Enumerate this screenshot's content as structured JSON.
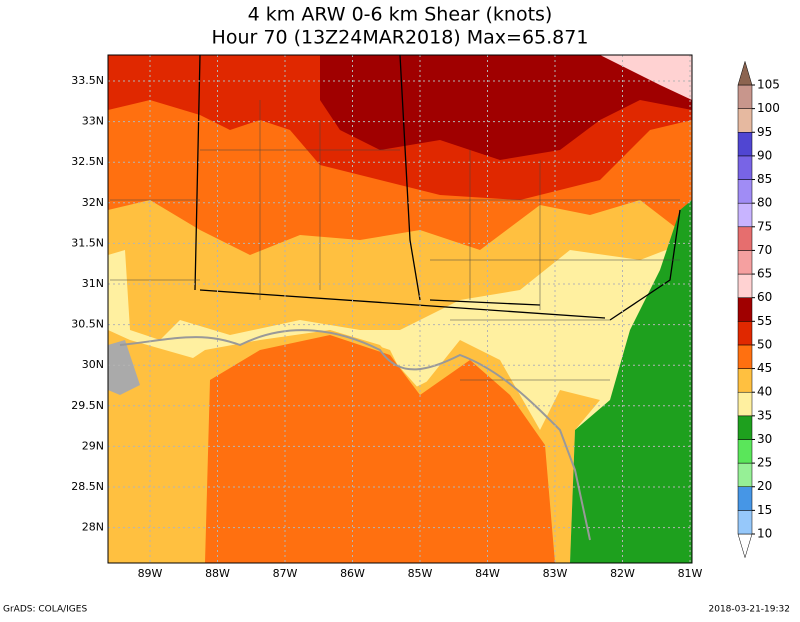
{
  "title": [
    "4 km ARW 0-6 km Shear (knots)",
    "Hour 70 (13Z24MAR2018) Max=65.871"
  ],
  "map": {
    "lat_labels": [
      "33.5N",
      "33N",
      "32.5N",
      "32N",
      "31.5N",
      "31N",
      "30.5N",
      "30N",
      "29.5N",
      "29N",
      "28.5N",
      "28N"
    ],
    "lon_labels": [
      "89W",
      "88W",
      "87W",
      "86W",
      "85W",
      "84W",
      "83W",
      "82W",
      "81W"
    ]
  },
  "colorbar": {
    "levels": [
      10,
      15,
      20,
      25,
      30,
      35,
      40,
      45,
      50,
      55,
      60,
      65,
      70,
      75,
      80,
      85,
      90,
      95,
      100,
      105
    ],
    "colors": [
      "#ffffff",
      "#96c8fa",
      "#4696e6",
      "#96f096",
      "#5ae65a",
      "#1ea01e",
      "#fff0a0",
      "#ffc040",
      "#ff7010",
      "#e02800",
      "#a00000",
      "#ffd2d2",
      "#f5a0a0",
      "#e66e6e",
      "#c8b4ff",
      "#a08cf5",
      "#7864e6",
      "#5046d2",
      "#e6b9a0",
      "#c8968c",
      "#8c6450"
    ]
  },
  "footer": {
    "left": "GrADS: COLA/IGES",
    "right": "2018-03-21-19:32"
  }
}
